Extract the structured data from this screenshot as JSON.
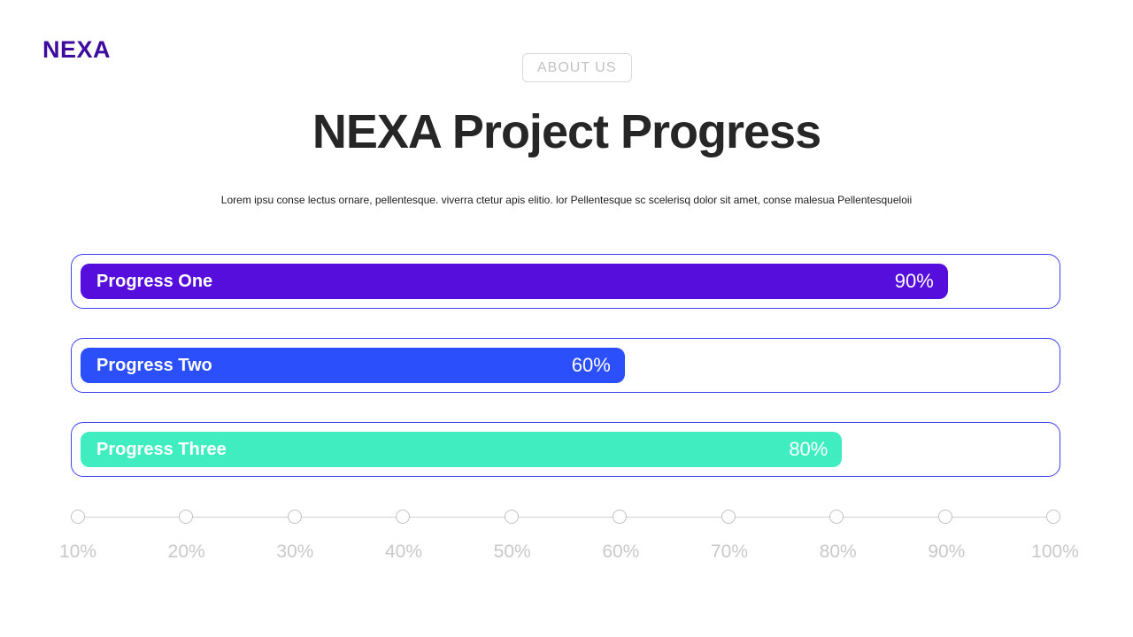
{
  "brand": {
    "name": "NEXA",
    "color": "#3d0c9e"
  },
  "header": {
    "about_button_label": "ABOUT US"
  },
  "hero": {
    "title": "NEXA Project Progress",
    "subtitle": "Lorem ipsu conse lectus ornare, pellentesque. viverra ctetur apis elitio. lor Pellentesque sc scelerisq dolor sit amet, conse malesua Pellentesqueloii"
  },
  "progress_bars": [
    {
      "label": "Progress One",
      "value": 90,
      "percent_label": "90%",
      "color": "#560edd",
      "bar_width_pct": 89.4
    },
    {
      "label": "Progress Two",
      "value": 60,
      "percent_label": "60%",
      "color": "#2b4ffa",
      "bar_width_pct": 56.1
    },
    {
      "label": "Progress Three",
      "value": 80,
      "percent_label": "80%",
      "color": "#3fedc1",
      "bar_width_pct": 78.5
    }
  ],
  "scale_ticks": [
    "10%",
    "20%",
    "30%",
    "40%",
    "50%",
    "60%",
    "70%",
    "80%",
    "90%",
    "100%"
  ],
  "colors": {
    "container_border": "#3f41ef",
    "muted_gray": "#c9c9c9",
    "title_text": "#262626"
  },
  "chart_data": {
    "type": "bar",
    "categories": [
      "Progress One",
      "Progress Two",
      "Progress Three"
    ],
    "values": [
      90,
      60,
      80
    ],
    "title": "NEXA Project Progress",
    "xlabel": "",
    "ylabel": "",
    "xlim": [
      0,
      100
    ],
    "axis_ticks": [
      "10%",
      "20%",
      "30%",
      "40%",
      "50%",
      "60%",
      "70%",
      "80%",
      "90%",
      "100%"
    ],
    "legend": false,
    "orientation": "horizontal"
  }
}
